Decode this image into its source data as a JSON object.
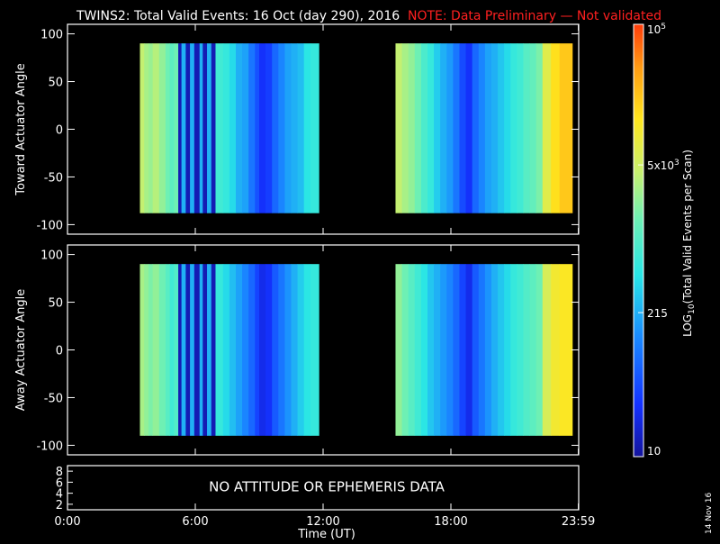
{
  "title": "TWINS2: Total Valid Events: 16 Oct (day 290), 2016",
  "note": "NOTE: Data Preliminary — Not validated",
  "datestamp": "14 Nov 16",
  "colors": {
    "background": "#000000",
    "foreground": "#ffffff",
    "note": "#ff2020",
    "colormap": [
      "#14149c",
      "#1432ff",
      "#1a8cff",
      "#28e6e6",
      "#6ef0b4",
      "#c8f06e",
      "#ffe61e",
      "#ff9c14",
      "#ff3c0a"
    ]
  },
  "colorbar": {
    "label": "LOG10(Total Valid Events per Scan)",
    "label_main": "LOG",
    "label_sub": "10",
    "label_rest": "(Total Valid Events per Scan)",
    "ticks": [
      {
        "value": 10,
        "label": "10"
      },
      {
        "value": 215,
        "label": "215"
      },
      {
        "value": 5000,
        "label": "5x10",
        "sup": "3"
      },
      {
        "value": 100000,
        "label": "10",
        "sup": "5"
      }
    ],
    "range": [
      10,
      100000
    ],
    "scale": "log"
  },
  "chart_data": [
    {
      "type": "heatmap",
      "panel": "toward",
      "ylabel": "Toward Actuator Angle",
      "xlim": [
        0,
        24
      ],
      "ylim": [
        -110,
        110
      ],
      "yticks": [
        -100,
        -50,
        0,
        50,
        100
      ],
      "y_extent": [
        -88,
        90
      ],
      "segments": [
        {
          "start": 3.4,
          "end": 11.8,
          "bands": [
            [
              3.4,
              0.62
            ],
            [
              3.6,
              0.58
            ],
            [
              3.8,
              0.56
            ],
            [
              4.0,
              0.6
            ],
            [
              4.3,
              0.55
            ],
            [
              4.6,
              0.5
            ],
            [
              4.8,
              0.47
            ],
            [
              5.0,
              0.5
            ],
            [
              5.2,
              0.03
            ],
            [
              5.35,
              0.3
            ],
            [
              5.55,
              0.03
            ],
            [
              5.75,
              0.3
            ],
            [
              5.95,
              0.03
            ],
            [
              6.2,
              0.3
            ],
            [
              6.35,
              0.03
            ],
            [
              6.55,
              0.3
            ],
            [
              6.75,
              0.03
            ],
            [
              6.95,
              0.42
            ],
            [
              7.3,
              0.4
            ],
            [
              7.6,
              0.36
            ],
            [
              7.9,
              0.3
            ],
            [
              8.2,
              0.28
            ],
            [
              8.5,
              0.22
            ],
            [
              8.8,
              0.17
            ],
            [
              9.0,
              0.12
            ],
            [
              9.3,
              0.14
            ],
            [
              9.6,
              0.2
            ],
            [
              9.9,
              0.24
            ],
            [
              10.2,
              0.28
            ],
            [
              10.5,
              0.3
            ],
            [
              10.8,
              0.32
            ],
            [
              11.1,
              0.38
            ],
            [
              11.4,
              0.4
            ]
          ]
        },
        {
          "start": 15.4,
          "end": 23.7,
          "bands": [
            [
              15.4,
              0.62
            ],
            [
              15.7,
              0.58
            ],
            [
              16.0,
              0.55
            ],
            [
              16.3,
              0.5
            ],
            [
              16.6,
              0.44
            ],
            [
              16.9,
              0.4
            ],
            [
              17.2,
              0.34
            ],
            [
              17.5,
              0.3
            ],
            [
              17.8,
              0.27
            ],
            [
              18.1,
              0.22
            ],
            [
              18.4,
              0.16
            ],
            [
              18.7,
              0.12
            ],
            [
              19.0,
              0.2
            ],
            [
              19.3,
              0.24
            ],
            [
              19.6,
              0.28
            ],
            [
              19.9,
              0.3
            ],
            [
              20.2,
              0.33
            ],
            [
              20.5,
              0.36
            ],
            [
              20.8,
              0.4
            ],
            [
              21.1,
              0.42
            ],
            [
              21.4,
              0.46
            ],
            [
              21.7,
              0.48
            ],
            [
              22.0,
              0.52
            ],
            [
              22.3,
              0.68
            ],
            [
              22.7,
              0.76
            ],
            [
              23.1,
              0.8
            ]
          ]
        }
      ]
    },
    {
      "type": "heatmap",
      "panel": "away",
      "ylabel": "Away Actuator Angle",
      "xlim": [
        0,
        24
      ],
      "ylim": [
        -110,
        110
      ],
      "yticks": [
        -100,
        -50,
        0,
        50,
        100
      ],
      "y_extent": [
        -90,
        90
      ],
      "segments": [
        {
          "start": 3.4,
          "end": 11.8,
          "bands": [
            [
              3.4,
              0.58
            ],
            [
              3.6,
              0.55
            ],
            [
              3.8,
              0.52
            ],
            [
              4.0,
              0.55
            ],
            [
              4.3,
              0.5
            ],
            [
              4.6,
              0.46
            ],
            [
              4.8,
              0.42
            ],
            [
              5.0,
              0.45
            ],
            [
              5.2,
              0.03
            ],
            [
              5.35,
              0.3
            ],
            [
              5.55,
              0.03
            ],
            [
              5.75,
              0.3
            ],
            [
              5.95,
              0.03
            ],
            [
              6.2,
              0.3
            ],
            [
              6.35,
              0.03
            ],
            [
              6.55,
              0.3
            ],
            [
              6.75,
              0.03
            ],
            [
              6.95,
              0.4
            ],
            [
              7.3,
              0.36
            ],
            [
              7.6,
              0.32
            ],
            [
              7.9,
              0.28
            ],
            [
              8.2,
              0.24
            ],
            [
              8.5,
              0.2
            ],
            [
              8.8,
              0.15
            ],
            [
              9.0,
              0.1
            ],
            [
              9.3,
              0.12
            ],
            [
              9.6,
              0.18
            ],
            [
              9.9,
              0.22
            ],
            [
              10.2,
              0.26
            ],
            [
              10.5,
              0.3
            ],
            [
              10.8,
              0.34
            ],
            [
              11.1,
              0.38
            ],
            [
              11.4,
              0.4
            ]
          ]
        },
        {
          "start": 15.4,
          "end": 23.7,
          "bands": [
            [
              15.4,
              0.55
            ],
            [
              15.7,
              0.5
            ],
            [
              16.0,
              0.46
            ],
            [
              16.3,
              0.42
            ],
            [
              16.6,
              0.38
            ],
            [
              16.9,
              0.33
            ],
            [
              17.2,
              0.3
            ],
            [
              17.5,
              0.27
            ],
            [
              17.8,
              0.24
            ],
            [
              18.1,
              0.2
            ],
            [
              18.4,
              0.15
            ],
            [
              18.7,
              0.1
            ],
            [
              19.0,
              0.18
            ],
            [
              19.3,
              0.22
            ],
            [
              19.6,
              0.26
            ],
            [
              19.9,
              0.3
            ],
            [
              20.2,
              0.33
            ],
            [
              20.5,
              0.36
            ],
            [
              20.8,
              0.4
            ],
            [
              21.1,
              0.42
            ],
            [
              21.4,
              0.45
            ],
            [
              21.7,
              0.47
            ],
            [
              22.0,
              0.5
            ],
            [
              22.3,
              0.66
            ],
            [
              22.7,
              0.72
            ],
            [
              23.1,
              0.74
            ]
          ]
        }
      ]
    }
  ],
  "bottom_panel": {
    "message": "NO ATTITUDE OR EPHEMERIS DATA",
    "yticks": [
      "2",
      "4",
      "6",
      "8"
    ]
  },
  "xaxis": {
    "label": "Time (UT)",
    "ticks": [
      {
        "value": 0,
        "label": "0:00"
      },
      {
        "value": 6,
        "label": "6:00"
      },
      {
        "value": 12,
        "label": "12:00"
      },
      {
        "value": 18,
        "label": "18:00"
      },
      {
        "value": 23.983,
        "label": "23:59"
      }
    ]
  }
}
